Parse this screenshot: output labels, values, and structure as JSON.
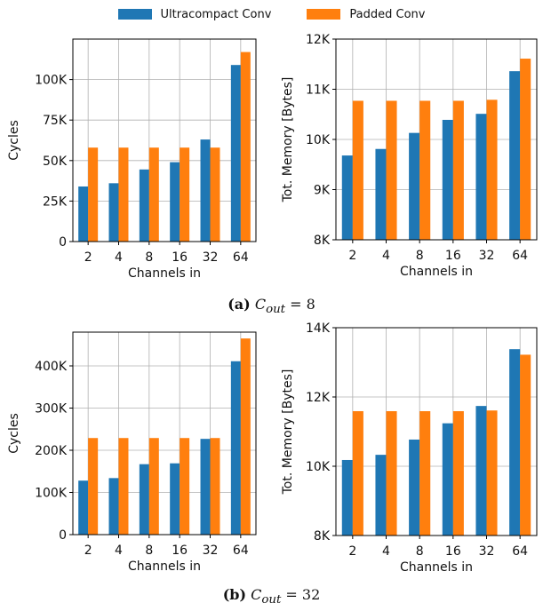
{
  "legend": [
    {
      "name": "Ultracompact Conv",
      "color": "#1f77b4"
    },
    {
      "name": "Padded Conv",
      "color": "#ff7f0e"
    }
  ],
  "captions": [
    {
      "label": "(a)",
      "var": "C",
      "sub": "out",
      "rest": " = 8"
    },
    {
      "label": "(b)",
      "var": "C",
      "sub": "out",
      "rest": " = 32"
    }
  ],
  "chart_data": [
    {
      "type": "bar",
      "categories": [
        "2",
        "4",
        "8",
        "16",
        "32",
        "64"
      ],
      "series": [
        {
          "name": "Ultracompact Conv",
          "values": [
            34000,
            36000,
            44500,
            49000,
            63000,
            109000
          ]
        },
        {
          "name": "Padded Conv",
          "values": [
            58000,
            58000,
            58000,
            58000,
            58000,
            117000
          ]
        }
      ],
      "xlabel": "Channels in",
      "ylabel": "Cycles",
      "ylim": [
        0,
        125000
      ],
      "yticks": [
        0,
        25000,
        50000,
        75000,
        100000
      ],
      "ytick_labels": [
        "0",
        "25K",
        "50K",
        "75K",
        "100K"
      ],
      "grid": true
    },
    {
      "type": "bar",
      "categories": [
        "2",
        "4",
        "8",
        "16",
        "32",
        "64"
      ],
      "series": [
        {
          "name": "Ultracompact Conv",
          "values": [
            9680,
            9810,
            10130,
            10390,
            10510,
            11360
          ]
        },
        {
          "name": "Padded Conv",
          "values": [
            10770,
            10770,
            10770,
            10770,
            10790,
            11610
          ]
        }
      ],
      "xlabel": "Channels in",
      "ylabel": "Tot. Memory [Bytes]",
      "ylim": [
        8000,
        12000
      ],
      "yticks": [
        8000,
        9000,
        10000,
        11000,
        12000
      ],
      "ytick_labels": [
        "8K",
        "9K",
        "10K",
        "11K",
        "12K"
      ],
      "grid": true
    },
    {
      "type": "bar",
      "categories": [
        "2",
        "4",
        "8",
        "16",
        "32",
        "64"
      ],
      "series": [
        {
          "name": "Ultracompact Conv",
          "values": [
            128000,
            134000,
            167000,
            169000,
            227000,
            411000
          ]
        },
        {
          "name": "Padded Conv",
          "values": [
            229000,
            229000,
            229000,
            229000,
            229000,
            465000
          ]
        }
      ],
      "xlabel": "Channels in",
      "ylabel": "Cycles",
      "ylim": [
        0,
        480000
      ],
      "yticks": [
        0,
        100000,
        200000,
        300000,
        400000
      ],
      "ytick_labels": [
        "0",
        "100K",
        "200K",
        "300K",
        "400K"
      ],
      "grid": true
    },
    {
      "type": "bar",
      "categories": [
        "2",
        "4",
        "8",
        "16",
        "32",
        "64"
      ],
      "series": [
        {
          "name": "Ultracompact Conv",
          "values": [
            10180,
            10330,
            10770,
            11240,
            11740,
            13380
          ]
        },
        {
          "name": "Padded Conv",
          "values": [
            11590,
            11590,
            11590,
            11590,
            11610,
            13220
          ]
        }
      ],
      "xlabel": "Channels in",
      "ylabel": "Tot. Memory [Bytes]",
      "ylim": [
        8000,
        14000
      ],
      "yticks": [
        8000,
        10000,
        12000,
        14000
      ],
      "ytick_labels": [
        "8K",
        "10K",
        "12K",
        "14K"
      ],
      "grid": true
    }
  ]
}
